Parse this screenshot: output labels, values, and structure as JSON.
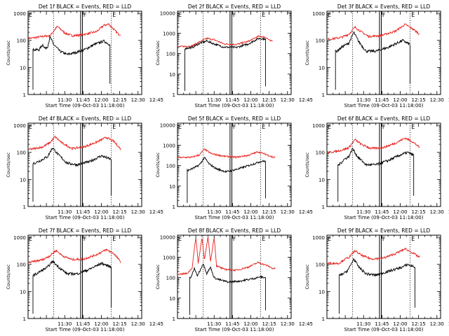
{
  "colors": {
    "events": "#000000",
    "lld": "#e8201c",
    "axis": "#000000",
    "background": "#ffffff"
  },
  "chart_data": [
    {
      "type": "line",
      "title": "Det 1f BLACK = Events, RED = LLD",
      "xlabel": "Start Time (09-Oct-03 11:18:00)",
      "ylabel": "Counts/sec",
      "xticks": [
        "11:30",
        "11:45",
        "12:00",
        "12:15",
        "12:30",
        "12:45"
      ],
      "yticks": [
        "1",
        "10",
        "100",
        "1000"
      ],
      "ylim": [
        1,
        1200
      ],
      "xlim_minutes": [
        -18,
        75
      ],
      "yscale": "log",
      "markers": [
        "F",
        "E"
      ],
      "lld_curve": [
        [
          -16,
          120
        ],
        [
          -6,
          140
        ],
        [
          0,
          150
        ],
        [
          6,
          330
        ],
        [
          12,
          190
        ],
        [
          18,
          150
        ],
        [
          26,
          160
        ],
        [
          38,
          210
        ],
        [
          44,
          360
        ],
        [
          48,
          400
        ],
        [
          52,
          260
        ],
        [
          56,
          170
        ]
      ],
      "events_curve": [
        [
          -13,
          45
        ],
        [
          -9,
          45
        ],
        [
          -6,
          70
        ],
        [
          -4,
          50
        ],
        [
          -2,
          60
        ],
        [
          0,
          130
        ],
        [
          3,
          70
        ],
        [
          8,
          40
        ],
        [
          14,
          30
        ],
        [
          20,
          35
        ],
        [
          28,
          45
        ],
        [
          36,
          70
        ],
        [
          44,
          95
        ],
        [
          49,
          70
        ]
      ],
      "events_start_minutes": -14,
      "lld_end_minutes": 58
    },
    {
      "type": "line",
      "title": "Det 2f BLACK = Events, RED = LLD",
      "xlabel": "Start Time (09-Oct-03 11:18:00)",
      "ylabel": "Counts/sec",
      "xticks": [
        "11:30",
        "11:45",
        "12:00",
        "12:15",
        "12:30",
        "12:45"
      ],
      "yticks": [
        "1",
        "10",
        "100",
        "1000",
        "10000"
      ],
      "ylim": [
        1,
        12000
      ],
      "xlim_minutes": [
        -18,
        75
      ],
      "yscale": "log",
      "markers": [
        "F",
        "E"
      ],
      "lld_curve": [
        [
          -16,
          220
        ],
        [
          -6,
          240
        ],
        [
          0,
          380
        ],
        [
          6,
          560
        ],
        [
          12,
          480
        ],
        [
          20,
          300
        ],
        [
          30,
          280
        ],
        [
          40,
          400
        ],
        [
          48,
          700
        ],
        [
          54,
          650
        ],
        [
          58,
          420
        ]
      ],
      "events_curve": [
        [
          -12,
          180
        ],
        [
          -6,
          200
        ],
        [
          0,
          320
        ],
        [
          6,
          420
        ],
        [
          12,
          300
        ],
        [
          20,
          210
        ],
        [
          30,
          200
        ],
        [
          40,
          300
        ],
        [
          48,
          550
        ],
        [
          54,
          530
        ]
      ],
      "events_start_minutes": -12,
      "lld_end_minutes": 60
    },
    {
      "type": "line",
      "title": "Det 3f BLACK = Events, RED = LLD",
      "xlabel": "Start Time (09-Oct-03 11:18:00)",
      "ylabel": "Counts/sec",
      "xticks": [
        "11:30",
        "11:45",
        "12:00",
        "12:15",
        "12:30",
        "12:45"
      ],
      "yticks": [
        "1",
        "10",
        "100",
        "1000"
      ],
      "ylim": [
        1,
        1200
      ],
      "xlim_minutes": [
        -18,
        75
      ],
      "yscale": "log",
      "markers": [
        "F",
        "E"
      ],
      "lld_curve": [
        [
          -16,
          110
        ],
        [
          -6,
          130
        ],
        [
          0,
          170
        ],
        [
          5,
          310
        ],
        [
          10,
          210
        ],
        [
          16,
          140
        ],
        [
          26,
          150
        ],
        [
          38,
          220
        ],
        [
          46,
          390
        ],
        [
          52,
          270
        ],
        [
          58,
          170
        ]
      ],
      "events_curve": [
        [
          -10,
          40
        ],
        [
          -5,
          60
        ],
        [
          0,
          80
        ],
        [
          4,
          200
        ],
        [
          8,
          90
        ],
        [
          14,
          40
        ],
        [
          22,
          40
        ],
        [
          32,
          55
        ],
        [
          44,
          100
        ],
        [
          50,
          70
        ]
      ],
      "events_start_minutes": -11,
      "lld_end_minutes": 58
    },
    {
      "type": "line",
      "title": "Det 4f BLACK = Events, RED = LLD",
      "xlabel": "Start Time (09-Oct-03 11:18:00)",
      "ylabel": "Counts/sec",
      "xticks": [
        "11:30",
        "11:45",
        "12:00",
        "12:15",
        "12:30",
        "12:45"
      ],
      "yticks": [
        "1",
        "10",
        "100",
        "1000"
      ],
      "ylim": [
        1,
        1200
      ],
      "xlim_minutes": [
        -18,
        75
      ],
      "yscale": "log",
      "markers": [
        "F",
        "E"
      ],
      "lld_curve": [
        [
          -16,
          130
        ],
        [
          -6,
          160
        ],
        [
          0,
          230
        ],
        [
          4,
          380
        ],
        [
          10,
          220
        ],
        [
          18,
          140
        ],
        [
          28,
          160
        ],
        [
          38,
          240
        ],
        [
          46,
          360
        ],
        [
          52,
          260
        ],
        [
          58,
          130
        ]
      ],
      "events_curve": [
        [
          -13,
          40
        ],
        [
          -8,
          50
        ],
        [
          -2,
          70
        ],
        [
          2,
          150
        ],
        [
          7,
          80
        ],
        [
          14,
          40
        ],
        [
          22,
          35
        ],
        [
          32,
          45
        ],
        [
          42,
          75
        ],
        [
          50,
          55
        ]
      ],
      "events_start_minutes": -14,
      "lld_end_minutes": 58
    },
    {
      "type": "line",
      "title": "Det 5f BLACK = Events, RED = LLD",
      "xlabel": "Start Time (09-Oct-03 11:18:00)",
      "ylabel": "Counts/sec",
      "xticks": [
        "11:30",
        "11:45",
        "12:00",
        "12:15",
        "12:30",
        "12:45"
      ],
      "yticks": [
        "1",
        "10",
        "100",
        "1000",
        "10000"
      ],
      "ylim": [
        1,
        12000
      ],
      "xlim_minutes": [
        -18,
        75
      ],
      "yscale": "log",
      "markers": [
        "F",
        "E"
      ],
      "lld_curve": [
        [
          -16,
          250
        ],
        [
          -6,
          260
        ],
        [
          0,
          340
        ],
        [
          4,
          640
        ],
        [
          10,
          380
        ],
        [
          20,
          290
        ],
        [
          30,
          260
        ],
        [
          40,
          320
        ],
        [
          48,
          480
        ],
        [
          56,
          330
        ],
        [
          60,
          260
        ]
      ],
      "events_curve": [
        [
          -9,
          60
        ],
        [
          -4,
          80
        ],
        [
          0,
          110
        ],
        [
          4,
          250
        ],
        [
          8,
          120
        ],
        [
          14,
          70
        ],
        [
          22,
          50
        ],
        [
          32,
          70
        ],
        [
          42,
          110
        ],
        [
          50,
          160
        ],
        [
          54,
          170
        ]
      ],
      "events_start_minutes": -10,
      "lld_end_minutes": 62
    },
    {
      "type": "line",
      "title": "Det 6f BLACK = Events, RED = LLD",
      "xlabel": "Start Time (09-Oct-03 11:18:00)",
      "ylabel": "Counts/sec",
      "xticks": [
        "11:30",
        "11:45",
        "12:00",
        "12:15",
        "12:30",
        "12:45"
      ],
      "yticks": [
        "1",
        "10",
        "100",
        "1000"
      ],
      "ylim": [
        1,
        1200
      ],
      "xlim_minutes": [
        -18,
        75
      ],
      "yscale": "log",
      "markers": [
        "F",
        "E"
      ],
      "lld_curve": [
        [
          -16,
          100
        ],
        [
          -6,
          120
        ],
        [
          0,
          150
        ],
        [
          5,
          300
        ],
        [
          10,
          200
        ],
        [
          18,
          140
        ],
        [
          28,
          150
        ],
        [
          38,
          220
        ],
        [
          46,
          340
        ],
        [
          52,
          250
        ],
        [
          58,
          150
        ]
      ],
      "events_curve": [
        [
          -8,
          35
        ],
        [
          -4,
          55
        ],
        [
          0,
          70
        ],
        [
          3,
          140
        ],
        [
          7,
          70
        ],
        [
          14,
          35
        ],
        [
          22,
          35
        ],
        [
          32,
          50
        ],
        [
          42,
          80
        ],
        [
          48,
          100
        ],
        [
          53,
          80
        ]
      ],
      "events_start_minutes": -9,
      "lld_end_minutes": 58
    },
    {
      "type": "line",
      "title": "Det 7f BLACK = Events, RED = LLD",
      "xlabel": "Start Time (09-Oct-03 11:18:00)",
      "ylabel": "Counts/sec",
      "xticks": [
        "11:30",
        "11:45",
        "12:00",
        "12:15",
        "12:30",
        "12:45"
      ],
      "yticks": [
        "1",
        "10",
        "100",
        "1000"
      ],
      "ylim": [
        1,
        1200
      ],
      "xlim_minutes": [
        -18,
        75
      ],
      "yscale": "log",
      "markers": [
        "F",
        "E"
      ],
      "lld_curve": [
        [
          -16,
          120
        ],
        [
          -6,
          150
        ],
        [
          0,
          210
        ],
        [
          5,
          330
        ],
        [
          10,
          210
        ],
        [
          18,
          150
        ],
        [
          28,
          160
        ],
        [
          38,
          230
        ],
        [
          46,
          350
        ],
        [
          52,
          260
        ],
        [
          58,
          120
        ]
      ],
      "events_curve": [
        [
          -13,
          40
        ],
        [
          -8,
          55
        ],
        [
          -2,
          80
        ],
        [
          2,
          130
        ],
        [
          7,
          80
        ],
        [
          14,
          45
        ],
        [
          22,
          45
        ],
        [
          32,
          65
        ],
        [
          42,
          110
        ],
        [
          50,
          80
        ]
      ],
      "events_start_minutes": -14,
      "lld_end_minutes": 58
    },
    {
      "type": "line",
      "title": "Det 8f BLACK = Events, RED = LLD",
      "xlabel": "Start Time (09-Oct-03 11:18:00)",
      "ylabel": "Counts/sec",
      "xticks": [
        "11:30",
        "11:45",
        "12:00",
        "12:15",
        "12:30",
        "12:45"
      ],
      "yticks": [
        "1",
        "10",
        "100",
        "1000",
        "10000"
      ],
      "ylim": [
        1,
        12000
      ],
      "xlim_minutes": [
        -18,
        75
      ],
      "yscale": "log",
      "markers": [
        "F",
        "E"
      ],
      "lld_curve": [
        [
          -16,
          150
        ],
        [
          -10,
          160
        ],
        [
          -6,
          300
        ],
        [
          -3,
          10000
        ],
        [
          -1,
          500
        ],
        [
          2,
          10000
        ],
        [
          4,
          700
        ],
        [
          7,
          10000
        ],
        [
          9,
          600
        ],
        [
          12,
          10000
        ],
        [
          14,
          380
        ],
        [
          20,
          260
        ],
        [
          30,
          230
        ],
        [
          40,
          330
        ],
        [
          48,
          560
        ],
        [
          56,
          380
        ],
        [
          60,
          280
        ]
      ],
      "events_curve": [
        [
          -7,
          100
        ],
        [
          -4,
          300
        ],
        [
          -2,
          120
        ],
        [
          0,
          200
        ],
        [
          3,
          500
        ],
        [
          6,
          160
        ],
        [
          9,
          330
        ],
        [
          12,
          100
        ],
        [
          16,
          80
        ],
        [
          24,
          60
        ],
        [
          34,
          70
        ],
        [
          44,
          90
        ],
        [
          50,
          110
        ],
        [
          54,
          100
        ]
      ],
      "events_start_minutes": -8,
      "lld_end_minutes": 62
    },
    {
      "type": "line",
      "title": "Det 9f BLACK = Events, RED = LLD",
      "xlabel": "Start Time (09-Oct-03 11:18:00)",
      "ylabel": "Counts/sec",
      "xticks": [
        "11:30",
        "11:45",
        "12:00",
        "12:15",
        "12:30",
        "12:45"
      ],
      "yticks": [
        "1",
        "10",
        "100",
        "1000"
      ],
      "ylim": [
        1,
        1200
      ],
      "xlim_minutes": [
        -18,
        75
      ],
      "yscale": "log",
      "markers": [
        "F",
        "E"
      ],
      "lld_curve": [
        [
          -8,
          110
        ],
        [
          -4,
          150
        ],
        [
          0,
          180
        ],
        [
          5,
          320
        ],
        [
          10,
          220
        ],
        [
          18,
          160
        ],
        [
          28,
          170
        ],
        [
          38,
          250
        ],
        [
          46,
          380
        ],
        [
          52,
          270
        ],
        [
          58,
          180
        ]
      ],
      "events_curve": [
        [
          -7,
          40
        ],
        [
          -3,
          50
        ],
        [
          0,
          70
        ],
        [
          4,
          160
        ],
        [
          8,
          80
        ],
        [
          14,
          45
        ],
        [
          22,
          40
        ],
        [
          32,
          55
        ],
        [
          44,
          80
        ],
        [
          48,
          100
        ],
        [
          54,
          80
        ]
      ],
      "events_start_minutes": -8,
      "lld_end_minutes": 58
    }
  ]
}
